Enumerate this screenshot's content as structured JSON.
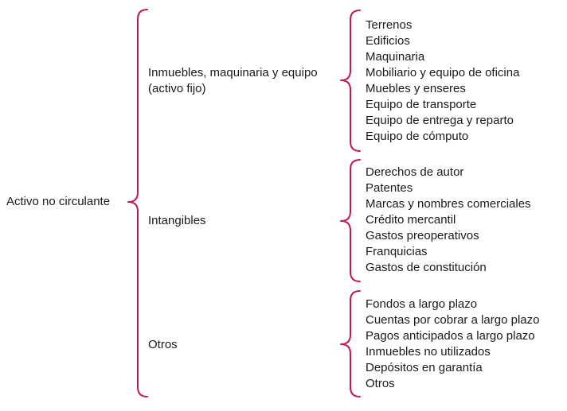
{
  "root": {
    "label": "Activo no circulante"
  },
  "brace_color": "#c2185b",
  "categories": [
    {
      "label": "Inmuebles, maquinaria y equipo",
      "sublabel": "(activo fijo)",
      "items": [
        "Terrenos",
        "Edificios",
        "Maquinaria",
        "Mobiliario y equipo de oficina",
        "Muebles y enseres",
        "Equipo de transporte",
        "Equipo de entrega y reparto",
        "Equipo de cómputo"
      ]
    },
    {
      "label": "Intangibles",
      "items": [
        "Derechos de autor",
        "Patentes",
        "Marcas y nombres comerciales",
        "Crédito mercantil",
        "Gastos preoperativos",
        "Franquicias",
        "Gastos de constitución"
      ]
    },
    {
      "label": "Otros",
      "items": [
        "Fondos a largo plazo",
        "Cuentas por cobrar a largo plazo",
        "Pagos anticipados a largo plazo",
        "Inmuebles no utilizados",
        "Depósitos en garantía",
        "Otros"
      ]
    }
  ]
}
